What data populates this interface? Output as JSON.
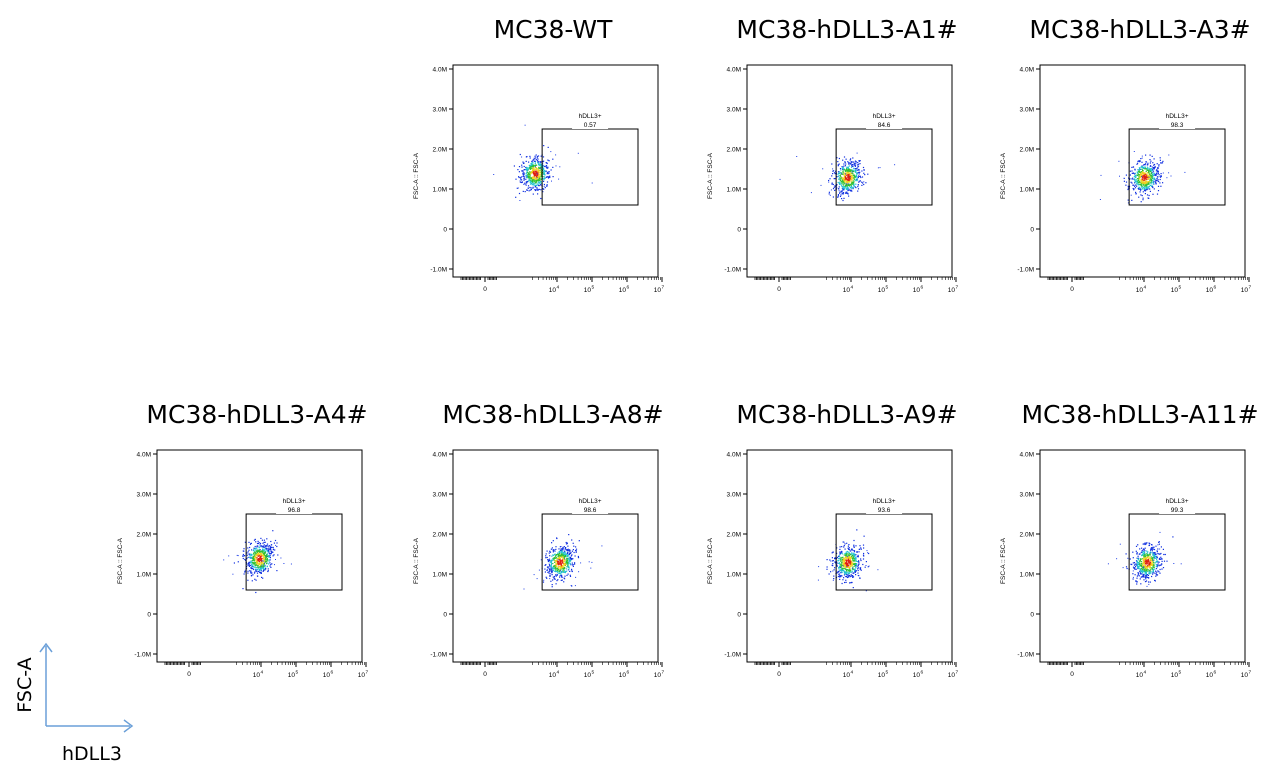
{
  "figure": {
    "key_y_label": "FSC-A",
    "key_x_label": "hDLL3"
  },
  "axis_text": {
    "xlabel": "FL17-H :: hDLL3 R660-H",
    "ylabel": "FSC-A :: FSC-A",
    "y_ticks": [
      "4.0M",
      "3.0M",
      "2.0M",
      "1.0M",
      "0",
      "-1.0M"
    ],
    "x_tick_zero": "0",
    "x_decades": [
      "4",
      "5",
      "6",
      "7"
    ],
    "x_decade_base": "10"
  },
  "gate_name": "hDLL3+",
  "chart_data": [
    {
      "type": "scatter",
      "title": "MC38-WT",
      "gate_label": "hDLL3+",
      "gate_percent": "0.57",
      "ylabel": "FSC-A :: FSC-A",
      "xlabel": "FL17-H :: hDLL3 R660-H",
      "ylim": [
        -1.2,
        4.1
      ],
      "x_scale": "biexponential",
      "gate": {
        "x": [
          6000,
          10000000
        ],
        "y": [
          0.6,
          2.5
        ]
      },
      "population": {
        "x_center": 2800,
        "y_center": 1.4
      }
    },
    {
      "type": "scatter",
      "title": "MC38-hDLL3-A1#",
      "gate_label": "hDLL3+",
      "gate_percent": "84.6",
      "ylabel": "FSC-A :: FSC-A",
      "xlabel": "FL17-H :: hDLL3 R660-H",
      "ylim": [
        -1.2,
        4.1
      ],
      "x_scale": "biexponential",
      "gate": {
        "x": [
          6000,
          10000000
        ],
        "y": [
          0.6,
          2.5
        ]
      },
      "population": {
        "x_center": 8000,
        "y_center": 1.3
      }
    },
    {
      "type": "scatter",
      "title": "MC38-hDLL3-A3#",
      "gate_label": "hDLL3+",
      "gate_percent": "98.3",
      "ylabel": "FSC-A :: FSC-A",
      "xlabel": "FL17-H :: hDLL3 R660-H",
      "ylim": [
        -1.2,
        4.1
      ],
      "x_scale": "biexponential",
      "gate": {
        "x": [
          6000,
          10000000
        ],
        "y": [
          0.6,
          2.5
        ]
      },
      "population": {
        "x_center": 10000,
        "y_center": 1.3
      }
    },
    {
      "type": "scatter",
      "title": "MC38-hDLL3-A4#",
      "gate_label": "hDLL3+",
      "gate_percent": "96.8",
      "ylabel": "FSC-A :: FSC-A",
      "xlabel": "FL17-H :: hDLL3 R660-H",
      "ylim": [
        -1.2,
        4.1
      ],
      "x_scale": "biexponential",
      "gate": {
        "x": [
          6000,
          10000000
        ],
        "y": [
          0.6,
          2.5
        ]
      },
      "population": {
        "x_center": 9000,
        "y_center": 1.4
      }
    },
    {
      "type": "scatter",
      "title": "MC38-hDLL3-A8#",
      "gate_label": "hDLL3+",
      "gate_percent": "98.6",
      "ylabel": "FSC-A :: FSC-A",
      "xlabel": "FL17-H :: hDLL3 R660-H",
      "ylim": [
        -1.2,
        4.1
      ],
      "x_scale": "biexponential",
      "gate": {
        "x": [
          6000,
          10000000
        ],
        "y": [
          0.6,
          2.5
        ]
      },
      "population": {
        "x_center": 12000,
        "y_center": 1.3
      }
    },
    {
      "type": "scatter",
      "title": "MC38-hDLL3-A9#",
      "gate_label": "hDLL3+",
      "gate_percent": "93.6",
      "ylabel": "FSC-A :: FSC-A",
      "xlabel": "FL17-H :: hDLL3 R660-H",
      "ylim": [
        -1.2,
        4.1
      ],
      "x_scale": "biexponential",
      "gate": {
        "x": [
          6000,
          10000000
        ],
        "y": [
          0.6,
          2.5
        ]
      },
      "population": {
        "x_center": 8000,
        "y_center": 1.3
      }
    },
    {
      "type": "scatter",
      "title": "MC38-hDLL3-A11#",
      "gate_label": "hDLL3+",
      "gate_percent": "99.3",
      "ylabel": "FSC-A :: FSC-A",
      "xlabel": "FL17-H :: hDLL3 R660-H",
      "ylim": [
        -1.2,
        4.1
      ],
      "x_scale": "biexponential",
      "gate": {
        "x": [
          6000,
          10000000
        ],
        "y": [
          0.6,
          2.5
        ]
      },
      "population": {
        "x_center": 12000,
        "y_center": 1.3
      }
    }
  ]
}
